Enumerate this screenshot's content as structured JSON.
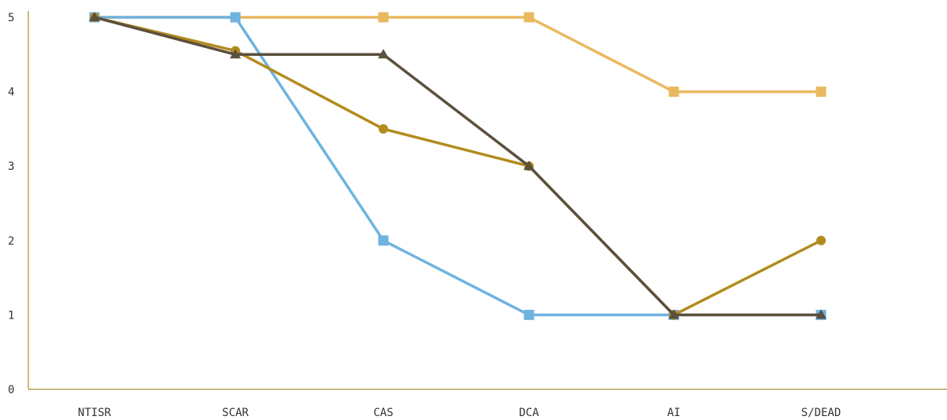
{
  "chart_data": {
    "type": "line",
    "categories": [
      "NTISR",
      "SCAR",
      "CAS",
      "DCA",
      "AI",
      "S/DEAD"
    ],
    "ylim": [
      0,
      5
    ],
    "yticks": [
      "0",
      "1",
      "2",
      "3",
      "4",
      "5"
    ],
    "grid": false,
    "legend": "none",
    "axis_color": "#a89030",
    "series": [
      {
        "values": [
          5,
          5,
          5,
          5,
          4,
          4
        ],
        "color": "#e9b95f",
        "marker": "square"
      },
      {
        "values": [
          5,
          5,
          2,
          1,
          1,
          1
        ],
        "color": "#6fb3e0",
        "marker": "square"
      },
      {
        "values": [
          5,
          4.55,
          3.5,
          3,
          1,
          2
        ],
        "color": "#b38b1d",
        "marker": "circle"
      },
      {
        "values": [
          5,
          4.5,
          4.5,
          3,
          1,
          1
        ],
        "color": "#5b4f3e",
        "marker": "triangle"
      }
    ]
  }
}
